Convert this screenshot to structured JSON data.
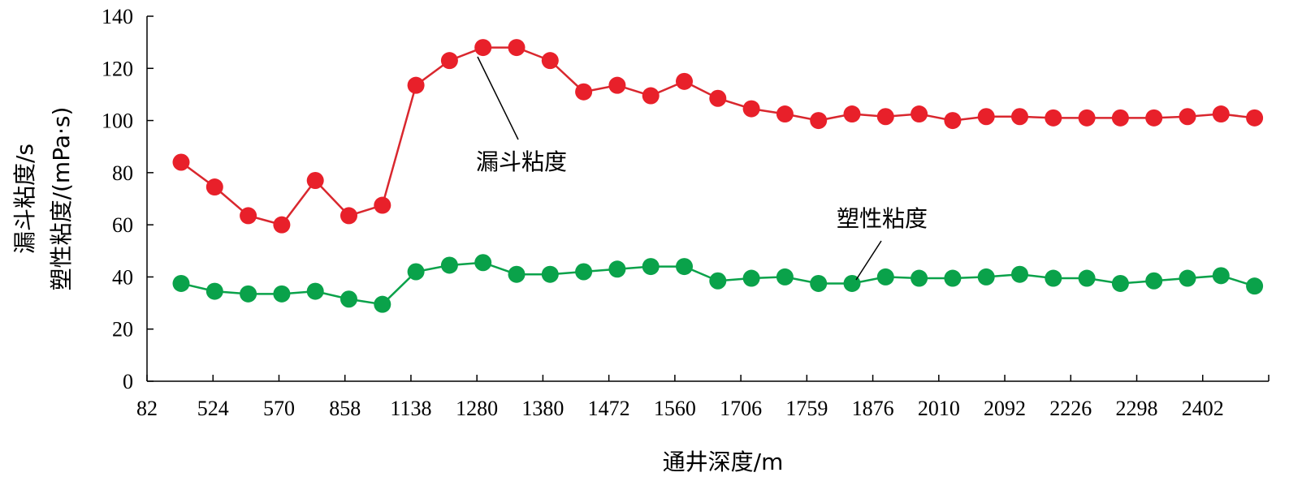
{
  "chart_data": {
    "type": "line",
    "xlabel": "通井深度/m",
    "ylabel_line1": "漏斗粘度/s",
    "ylabel_line2": "塑性粘度/(mPa·s)",
    "ylim": [
      0,
      140
    ],
    "yticks": [
      0,
      20,
      40,
      60,
      80,
      100,
      120,
      140
    ],
    "x_tick_labels": [
      "82",
      "524",
      "570",
      "858",
      "1138",
      "1280",
      "1380",
      "1472",
      "1560",
      "1706",
      "1759",
      "1876",
      "2010",
      "2092",
      "2226",
      "2298",
      "2402"
    ],
    "point_count": 33,
    "grid": false,
    "series": [
      {
        "name": "漏斗粘度",
        "color": "#e8202a",
        "line_color": "#d9272e",
        "values": [
          84,
          74.5,
          63.5,
          60,
          77,
          63.5,
          67.5,
          113.5,
          123,
          128,
          128,
          123,
          111,
          113.5,
          109.5,
          115,
          108.5,
          104.5,
          102.5,
          100,
          102.5,
          101.5,
          102.5,
          100,
          101.5,
          101.5,
          101,
          101,
          101,
          101,
          101.5,
          102.5,
          101
        ]
      },
      {
        "name": "塑性粘度",
        "color": "#0aa24a",
        "line_color": "#0aa24a",
        "values": [
          37.5,
          34.5,
          33.5,
          33.5,
          34.5,
          31.5,
          29.5,
          42,
          44.5,
          45.5,
          41,
          41,
          42,
          43,
          44,
          44,
          38.5,
          39.5,
          40,
          37.5,
          37.5,
          40,
          39.5,
          39.5,
          40,
          41,
          39.5,
          39.5,
          37.5,
          38.5,
          39.5,
          40.5,
          36.5
        ]
      }
    ]
  }
}
